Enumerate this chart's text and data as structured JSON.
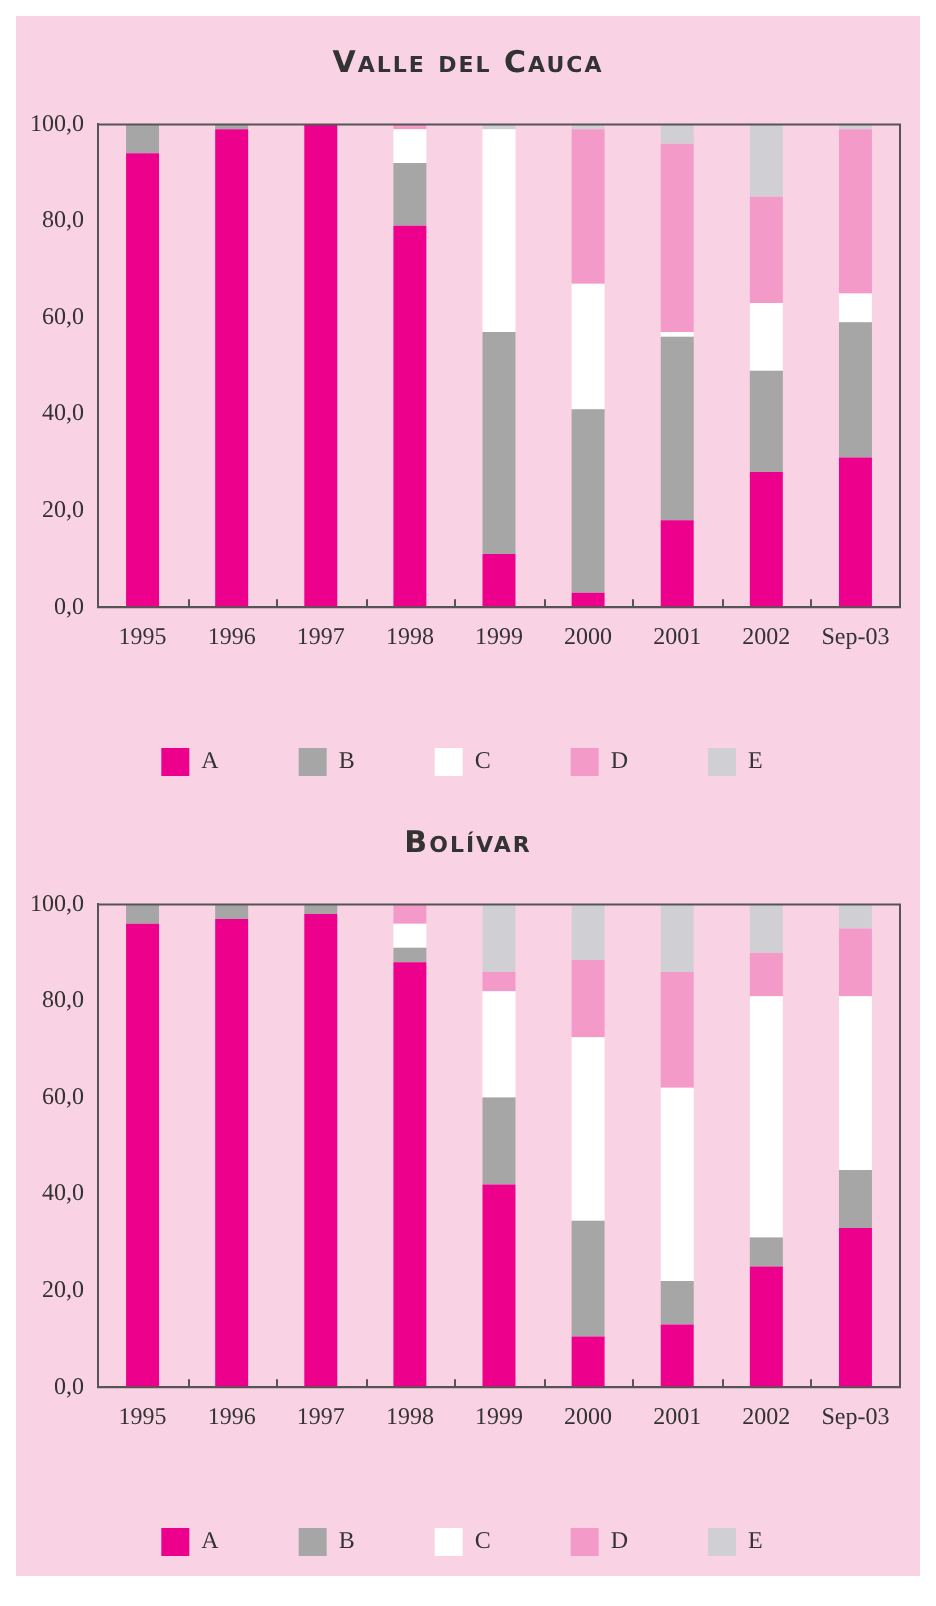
{
  "chart_data": [
    {
      "type": "bar",
      "title": "Valle del Cauca",
      "stacked": true,
      "categories": [
        "1995",
        "1996",
        "1997",
        "1998",
        "1999",
        "2000",
        "2001",
        "2002",
        "Sep-03"
      ],
      "series": [
        {
          "name": "A",
          "color": "#ec008c",
          "values": [
            94,
            99,
            100,
            79,
            11,
            3,
            18,
            28,
            31
          ]
        },
        {
          "name": "B",
          "color": "#a6a6a6",
          "values": [
            6,
            1,
            0,
            13,
            46,
            38,
            38,
            21,
            28
          ]
        },
        {
          "name": "C",
          "color": "#ffffff",
          "values": [
            0,
            0,
            0,
            7,
            42,
            26,
            1,
            14,
            6
          ]
        },
        {
          "name": "D",
          "color": "#f49ac8",
          "values": [
            0,
            0,
            0,
            1,
            0,
            32,
            39,
            22,
            34
          ]
        },
        {
          "name": "E",
          "color": "#d0d0d4",
          "values": [
            0,
            0,
            0,
            0,
            1,
            1,
            4,
            15,
            1
          ]
        }
      ],
      "ylim": [
        0,
        100
      ],
      "yticks": [
        {
          "value": 0,
          "label": "0,0"
        },
        {
          "value": 20,
          "label": "20,0"
        },
        {
          "value": 40,
          "label": "40,0"
        },
        {
          "value": 60,
          "label": "60,0"
        },
        {
          "value": 80,
          "label": "80,0"
        },
        {
          "value": 100,
          "label": "100,0"
        }
      ],
      "grid": false,
      "legend": "bottom"
    },
    {
      "type": "bar",
      "title": "Bolívar",
      "stacked": true,
      "categories": [
        "1995",
        "1996",
        "1997",
        "1998",
        "1999",
        "2000",
        "2001",
        "2002",
        "Sep-03"
      ],
      "series": [
        {
          "name": "A",
          "color": "#ec008c",
          "values": [
            96,
            97,
            98,
            88,
            42,
            10.5,
            13,
            25,
            33
          ]
        },
        {
          "name": "B",
          "color": "#a6a6a6",
          "values": [
            4,
            3,
            2,
            3,
            18,
            24,
            9,
            6,
            12
          ]
        },
        {
          "name": "C",
          "color": "#ffffff",
          "values": [
            0,
            0,
            0,
            5,
            22,
            38,
            40,
            50,
            36
          ]
        },
        {
          "name": "D",
          "color": "#f49ac8",
          "values": [
            0,
            0,
            0,
            4,
            4,
            16,
            24,
            9,
            14
          ]
        },
        {
          "name": "E",
          "color": "#d0d0d4",
          "values": [
            0,
            0,
            0,
            0,
            14,
            11.5,
            14,
            10,
            5
          ]
        }
      ],
      "ylim": [
        0,
        100
      ],
      "yticks": [
        {
          "value": 0,
          "label": "0,0"
        },
        {
          "value": 20,
          "label": "20,0"
        },
        {
          "value": 40,
          "label": "40,0"
        },
        {
          "value": 60,
          "label": "60,0"
        },
        {
          "value": 80,
          "label": "80,0"
        },
        {
          "value": 100,
          "label": "100,0"
        }
      ],
      "grid": false,
      "legend": "bottom"
    }
  ]
}
